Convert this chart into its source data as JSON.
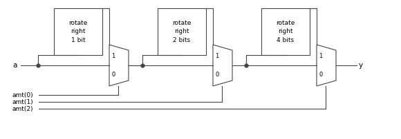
{
  "bg_color": "#ffffff",
  "line_color": "#444444",
  "text_color": "#000000",
  "figsize": [
    5.8,
    2.02
  ],
  "dpi": 100,
  "input_label": "a",
  "output_label": "y",
  "ctrl_labels": [
    "amt(0)",
    "amt(1)",
    "amt(2)"
  ],
  "box_labels": [
    "rotate\nright\n1 bit",
    "rotate\nright\n2 bits",
    "rotate\nright\n4 bits"
  ],
  "font_size": 6.5,
  "label_font_size": 7.5
}
